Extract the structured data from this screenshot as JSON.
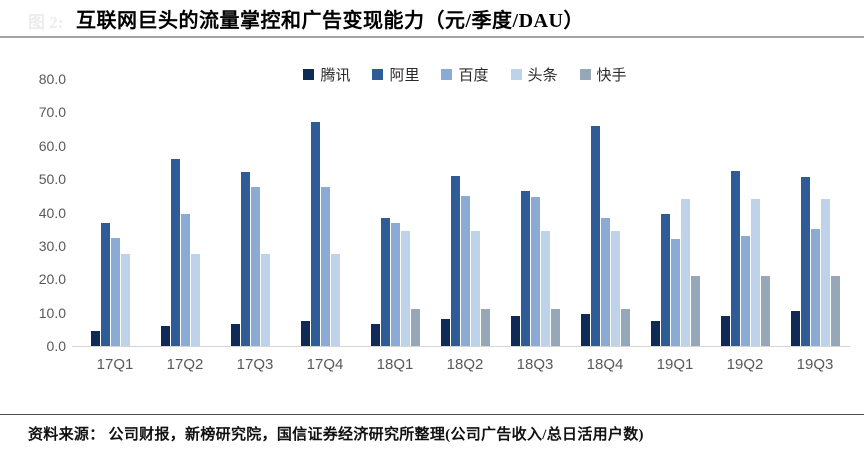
{
  "figure": {
    "label": "图 2:",
    "title": "互联网巨头的流量掌控和广告变现能力（元/季度/DAU）",
    "source": "资料来源： 公司财报，新榜研究院，国信证券经济研究所整理(公司广告收入/总日活用户数)"
  },
  "chart_data": {
    "type": "bar",
    "title": "互联网巨头的流量掌控和广告变现能力（元/季度/DAU）",
    "categories": [
      "17Q1",
      "17Q2",
      "17Q3",
      "17Q4",
      "18Q1",
      "18Q2",
      "18Q3",
      "18Q4",
      "19Q1",
      "19Q2",
      "19Q3"
    ],
    "series": [
      {
        "name": "腾讯",
        "color": "#0f2b55",
        "values": [
          4.5,
          6,
          6.5,
          7.5,
          6.5,
          8,
          9,
          9.5,
          7.5,
          9,
          10.5
        ]
      },
      {
        "name": "阿里",
        "color": "#2f5b96",
        "values": [
          37,
          56,
          52,
          67,
          38.5,
          51,
          46.5,
          66,
          39.5,
          52.5,
          50.5
        ]
      },
      {
        "name": "百度",
        "color": "#8babd4",
        "values": [
          32.5,
          39.5,
          47.5,
          47.5,
          37,
          45,
          44.5,
          38.5,
          32,
          33,
          35
        ]
      },
      {
        "name": "头条",
        "color": "#bed2ea",
        "values": [
          27.5,
          27.5,
          27.5,
          27.5,
          34.5,
          34.5,
          34.5,
          34.5,
          44,
          44,
          44
        ]
      },
      {
        "name": "快手",
        "color": "#96a7b8",
        "values": [
          null,
          null,
          null,
          null,
          11,
          11,
          11,
          11,
          21,
          21,
          21
        ]
      }
    ],
    "ylim": [
      0,
      80
    ],
    "yticks": [
      80,
      70,
      60,
      50,
      40,
      30,
      20,
      10,
      0
    ],
    "ytick_decimals": 1,
    "grid": false,
    "legend_position": "top",
    "axis_color": "#d5d5d5",
    "tick_label_color": "#595959"
  }
}
